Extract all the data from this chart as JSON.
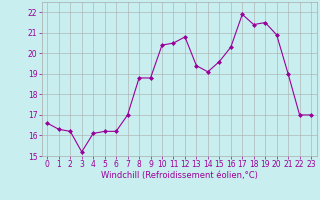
{
  "x": [
    0,
    1,
    2,
    3,
    4,
    5,
    6,
    7,
    8,
    9,
    10,
    11,
    12,
    13,
    14,
    15,
    16,
    17,
    18,
    19,
    20,
    21,
    22,
    23
  ],
  "y": [
    16.6,
    16.3,
    16.2,
    15.2,
    16.1,
    16.2,
    16.2,
    17.0,
    18.8,
    18.8,
    20.4,
    20.5,
    20.8,
    19.4,
    19.1,
    19.6,
    20.3,
    21.9,
    21.4,
    21.5,
    20.9,
    19.0,
    17.0,
    17.0
  ],
  "line_color": "#990099",
  "marker": "D",
  "marker_size": 2.0,
  "bg_color": "#c8eef0",
  "grid_color": "#aaaaaa",
  "xlabel": "Windchill (Refroidissement éolien,°C)",
  "xlabel_color": "#990099",
  "tick_color": "#990099",
  "ylim": [
    15,
    22.5
  ],
  "xlim": [
    -0.5,
    23.5
  ],
  "yticks": [
    15,
    16,
    17,
    18,
    19,
    20,
    21,
    22
  ],
  "xticks": [
    0,
    1,
    2,
    3,
    4,
    5,
    6,
    7,
    8,
    9,
    10,
    11,
    12,
    13,
    14,
    15,
    16,
    17,
    18,
    19,
    20,
    21,
    22,
    23
  ],
  "tick_fontsize": 5.5,
  "xlabel_fontsize": 6.0
}
